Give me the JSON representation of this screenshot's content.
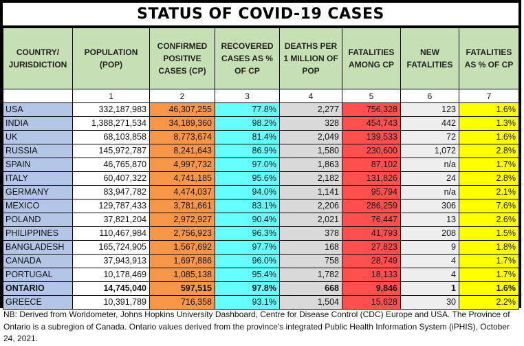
{
  "title": "STATUS OF COVID-19 CASES",
  "headers": [
    "COUNTRY/ JURISDICTION",
    "POPULATION (POP)",
    "CONFIRMED POSITIVE CASES (CP)",
    "RECOVERED CASES AS % OF CP",
    "DEATHS PER 1 MILLION OF POP",
    "FATALITIES AMONG CP",
    "NEW FATALITIES",
    "FATALITIES AS % OF CP"
  ],
  "column_numbers": [
    "",
    "1",
    "2",
    "3",
    "4",
    "5",
    "6",
    "7"
  ],
  "colors": {
    "header": "#c6e0b4",
    "country": "#b4c6e7",
    "confirmed": "#f79646",
    "recovered": "#66ffff",
    "deaths_per_million": "#d9d9d9",
    "fatalities": "#ff4f4f",
    "new_fatalities": "#eeeeee",
    "fatality_pct": "#ffff00"
  },
  "rows": [
    [
      "USA",
      "332,187,983",
      "46,307,255",
      "77.8%",
      "2,277",
      "756,328",
      "123",
      "1.6%"
    ],
    [
      "INDIA",
      "1,388,271,534",
      "34,189,360",
      "98.2%",
      "328",
      "454,743",
      "442",
      "1.3%"
    ],
    [
      "UK",
      "68,103,858",
      "8,773,674",
      "81.4%",
      "2,049",
      "139,533",
      "72",
      "1.6%"
    ],
    [
      "RUSSIA",
      "145,972,787",
      "8,241,643",
      "86.9%",
      "1,580",
      "230,600",
      "1,072",
      "2.8%"
    ],
    [
      "SPAIN",
      "46,765,870",
      "4,997,732",
      "97.0%",
      "1,863",
      "87,102",
      "n/a",
      "1.7%"
    ],
    [
      "ITALY",
      "60,407,322",
      "4,741,185",
      "95.6%",
      "2,182",
      "131,826",
      "24",
      "2.8%"
    ],
    [
      "GERMANY",
      "83,947,782",
      "4,474,037",
      "94.0%",
      "1,141",
      "95,794",
      "n/a",
      "2.1%"
    ],
    [
      "MEXICO",
      "129,787,433",
      "3,781,661",
      "83.1%",
      "2,206",
      "286,259",
      "306",
      "7.6%"
    ],
    [
      "POLAND",
      "37,821,204",
      "2,972,927",
      "90.4%",
      "2,021",
      "76,447",
      "13",
      "2.6%"
    ],
    [
      "PHILIPPINES",
      "110,467,984",
      "2,756,923",
      "96.3%",
      "378",
      "41,793",
      "208",
      "1.5%"
    ],
    [
      "BANGLADESH",
      "165,724,905",
      "1,567,692",
      "97.7%",
      "168",
      "27,823",
      "9",
      "1.8%"
    ],
    [
      "CANADA",
      "37,943,913",
      "1,697,886",
      "96.0%",
      "758",
      "28,749",
      "4",
      "1.7%"
    ],
    [
      "PORTUGAL",
      "10,178,469",
      "1,085,138",
      "95.4%",
      "1,782",
      "18,133",
      "4",
      "1.7%"
    ],
    [
      "ONTARIO",
      "14,745,040",
      "597,515",
      "97.8%",
      "668",
      "9,846",
      "1",
      "1.6%"
    ],
    [
      "GREECE",
      "10,391,789",
      "716,358",
      "93.1%",
      "1,504",
      "15,628",
      "30",
      "2.2%"
    ]
  ],
  "bold_row": "ONTARIO",
  "note": "NB: Derived from Worldometer, Johns Hopkins University Dashboard, Centre for Disease Control (CDC) Europe and USA. The Province of Ontario is a subregion of Canada. Ontario values derived from the province's integrated Public Health Information System (iPHIS), October 24, 2021."
}
